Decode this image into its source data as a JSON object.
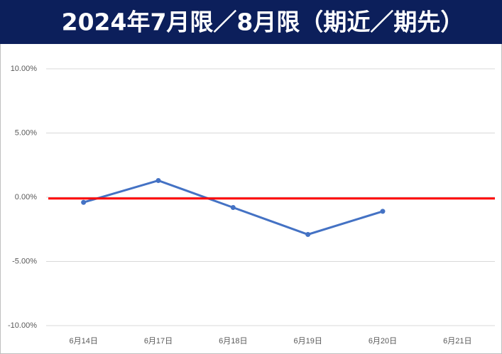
{
  "chart_data": {
    "type": "line",
    "title": "2024年7月限／8月限（期近／期先）",
    "categories": [
      "6月14日",
      "6月17日",
      "6月18日",
      "6月19日",
      "6月20日",
      "6月21日"
    ],
    "series": [
      {
        "color": "#4472c4",
        "values": [
          -0.4,
          1.3,
          -0.8,
          -2.9,
          -1.1,
          null
        ]
      }
    ],
    "reference_line": {
      "value": -0.1,
      "color": "#ff0000"
    },
    "ylim": [
      -10,
      10
    ],
    "yticks": [
      {
        "value": -10,
        "label": "-10.00%"
      },
      {
        "value": -5,
        "label": "-5.00%"
      },
      {
        "value": 0,
        "label": "0.00%"
      },
      {
        "value": 5,
        "label": "5.00%"
      },
      {
        "value": 10,
        "label": "10.00%"
      }
    ],
    "grid": true
  }
}
